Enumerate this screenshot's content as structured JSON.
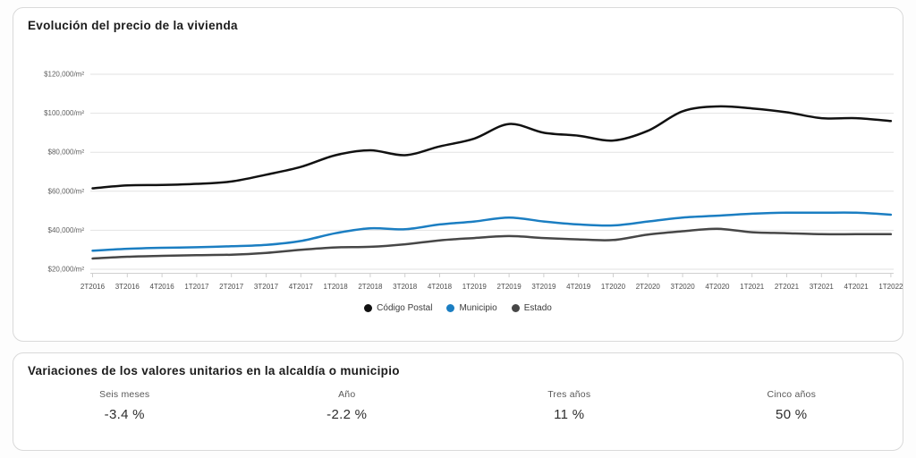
{
  "chart_card": {
    "title": "Evolución del precio de la vivienda"
  },
  "chart_data": {
    "type": "line",
    "title": "Evolución del precio de la vivienda",
    "grid": "horizontal",
    "legend_position": "bottom",
    "ylim": [
      20000,
      120000
    ],
    "unit": "$/m²",
    "y_ticks": [
      {
        "value": 120000,
        "label": "$120,000/m²"
      },
      {
        "value": 100000,
        "label": "$100,000/m²"
      },
      {
        "value": 80000,
        "label": "$80,000/m²"
      },
      {
        "value": 60000,
        "label": "$60,000/m²"
      },
      {
        "value": 40000,
        "label": "$40,000/m²"
      },
      {
        "value": 20000,
        "label": "$20,000/m²"
      }
    ],
    "categories": [
      "2T2016",
      "3T2016",
      "4T2016",
      "1T2017",
      "2T2017",
      "3T2017",
      "4T2017",
      "1T2018",
      "2T2018",
      "3T2018",
      "4T2018",
      "1T2019",
      "2T2019",
      "3T2019",
      "4T2019",
      "1T2020",
      "2T2020",
      "3T2020",
      "4T2020",
      "1T2021",
      "2T2021",
      "3T2021",
      "4T2021",
      "1T2022"
    ],
    "series": [
      {
        "name": "Código Postal",
        "color": "#111111",
        "values": [
          61500,
          63000,
          63200,
          63800,
          65000,
          68500,
          72500,
          78500,
          81000,
          78500,
          83000,
          87000,
          94500,
          90000,
          88500,
          86000,
          91000,
          101000,
          103500,
          102500,
          100500,
          97500,
          97500,
          96000
        ]
      },
      {
        "name": "Municipio",
        "color": "#1b7ec2",
        "values": [
          29500,
          30500,
          31000,
          31300,
          31800,
          32500,
          34500,
          38500,
          41000,
          40500,
          43000,
          44500,
          46500,
          44500,
          43000,
          42500,
          44500,
          46500,
          47500,
          48500,
          49000,
          49000,
          49000,
          48000
        ]
      },
      {
        "name": "Estado",
        "color": "#474747",
        "values": [
          25500,
          26400,
          26900,
          27200,
          27500,
          28400,
          30000,
          31200,
          31500,
          32800,
          34800,
          36000,
          37000,
          36000,
          35300,
          35000,
          37800,
          39500,
          40800,
          39000,
          38500,
          38000,
          38000,
          38000
        ]
      }
    ]
  },
  "variations": {
    "title": "Variaciones de los valores unitarios en la alcaldía o municipio",
    "items": [
      {
        "label": "Seis meses",
        "value": "-3.4 %"
      },
      {
        "label": "Año",
        "value": "-2.2 %"
      },
      {
        "label": "Tres años",
        "value": "11 %"
      },
      {
        "label": "Cinco años",
        "value": "50 %"
      }
    ]
  }
}
